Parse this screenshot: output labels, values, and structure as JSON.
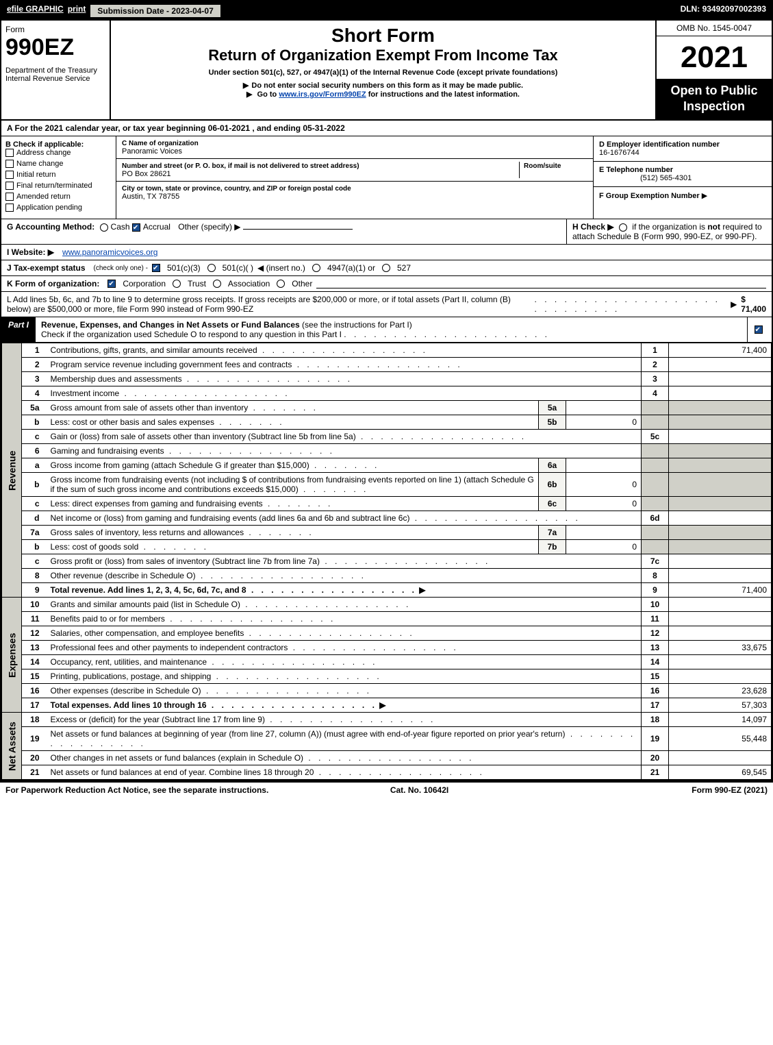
{
  "topbar": {
    "efile": "efile GRAPHIC",
    "print": "print",
    "submission_label": "Submission Date - ",
    "submission_date": "2023-04-07",
    "dln_label": "DLN: ",
    "dln": "93492097002393"
  },
  "header": {
    "form_word": "Form",
    "form_number": "990EZ",
    "dept": "Department of the Treasury",
    "irs": "Internal Revenue Service",
    "short_form": "Short Form",
    "title": "Return of Organization Exempt From Income Tax",
    "subtitle": "Under section 501(c), 527, or 4947(a)(1) of the Internal Revenue Code (except private foundations)",
    "note1": "Do not enter social security numbers on this form as it may be made public.",
    "note2_pre": "Go to ",
    "note2_link": "www.irs.gov/Form990EZ",
    "note2_post": " for instructions and the latest information.",
    "omb": "OMB No. 1545-0047",
    "year": "2021",
    "open": "Open to Public Inspection"
  },
  "sectionA": "A  For the 2021 calendar year, or tax year beginning 06-01-2021 , and ending 05-31-2022",
  "boxB": {
    "label": "B  Check if applicable:",
    "items": [
      "Address change",
      "Name change",
      "Initial return",
      "Final return/terminated",
      "Amended return",
      "Application pending"
    ]
  },
  "boxC": {
    "name_label": "C Name of organization",
    "org_name": "Panoramic Voices",
    "street_label": "Number and street (or P. O. box, if mail is not delivered to street address)",
    "street": "PO Box 28621",
    "room_label": "Room/suite",
    "city_label": "City or town, state or province, country, and ZIP or foreign postal code",
    "city": "Austin, TX  78755"
  },
  "boxD": {
    "label": "D Employer identification number",
    "ein": "16-1676744"
  },
  "boxE": {
    "label": "E Telephone number",
    "phone": "(512) 565-4301"
  },
  "boxF": {
    "label": "F Group Exemption Number",
    "arrow": "▶"
  },
  "rowG": {
    "label": "G Accounting Method:",
    "cash": "Cash",
    "accrual": "Accrual",
    "other": "Other (specify) ▶"
  },
  "rowH": {
    "text1": "H  Check ▶",
    "text2": " if the organization is ",
    "not": "not",
    "text3": " required to attach Schedule B (Form 990, 990-EZ, or 990-PF)."
  },
  "rowI": {
    "label": "I Website: ▶",
    "url": "www.panoramicvoices.org"
  },
  "rowJ": {
    "label": "J Tax-exempt status",
    "hint": " (check only one) - ",
    "opt1": "501(c)(3)",
    "opt2": "501(c)(  )",
    "opt2b": "◀ (insert no.)",
    "opt3": "4947(a)(1) or",
    "opt4": "527"
  },
  "rowK": {
    "label": "K Form of organization:",
    "items": [
      "Corporation",
      "Trust",
      "Association",
      "Other"
    ]
  },
  "rowL": {
    "text": "L Add lines 5b, 6c, and 7b to line 9 to determine gross receipts. If gross receipts are $200,000 or more, or if total assets (Part II, column (B) below) are $500,000 or more, file Form 990 instead of Form 990-EZ",
    "amount": "$ 71,400"
  },
  "partI": {
    "label": "Part I",
    "title": "Revenue, Expenses, and Changes in Net Assets or Fund Balances",
    "title_hint": " (see the instructions for Part I)",
    "check_note": "Check if the organization used Schedule O to respond to any question in this Part I"
  },
  "tabs": {
    "revenue": "Revenue",
    "expenses": "Expenses",
    "netassets": "Net Assets"
  },
  "lines": [
    {
      "n": "1",
      "d": "Contributions, gifts, grants, and similar amounts received",
      "ln": "1",
      "v": "71,400"
    },
    {
      "n": "2",
      "d": "Program service revenue including government fees and contracts",
      "ln": "2",
      "v": ""
    },
    {
      "n": "3",
      "d": "Membership dues and assessments",
      "ln": "3",
      "v": ""
    },
    {
      "n": "4",
      "d": "Investment income",
      "ln": "4",
      "v": ""
    },
    {
      "n": "5a",
      "d": "Gross amount from sale of assets other than inventory",
      "ml": "5a",
      "mv": ""
    },
    {
      "n": "b",
      "d": "Less: cost or other basis and sales expenses",
      "ml": "5b",
      "mv": "0"
    },
    {
      "n": "c",
      "d": "Gain or (loss) from sale of assets other than inventory (Subtract line 5b from line 5a)",
      "ln": "5c",
      "v": ""
    },
    {
      "n": "6",
      "d": "Gaming and fundraising events",
      "ln": "",
      "v": "",
      "grey": true
    },
    {
      "n": "a",
      "d": "Gross income from gaming (attach Schedule G if greater than $15,000)",
      "ml": "6a",
      "mv": ""
    },
    {
      "n": "b",
      "d": "Gross income from fundraising events (not including $                    of contributions from fundraising events reported on line 1) (attach Schedule G if the sum of such gross income and contributions exceeds $15,000)",
      "ml": "6b",
      "mv": "0"
    },
    {
      "n": "c",
      "d": "Less: direct expenses from gaming and fundraising events",
      "ml": "6c",
      "mv": "0"
    },
    {
      "n": "d",
      "d": "Net income or (loss) from gaming and fundraising events (add lines 6a and 6b and subtract line 6c)",
      "ln": "6d",
      "v": ""
    },
    {
      "n": "7a",
      "d": "Gross sales of inventory, less returns and allowances",
      "ml": "7a",
      "mv": ""
    },
    {
      "n": "b",
      "d": "Less: cost of goods sold",
      "ml": "7b",
      "mv": "0"
    },
    {
      "n": "c",
      "d": "Gross profit or (loss) from sales of inventory (Subtract line 7b from line 7a)",
      "ln": "7c",
      "v": ""
    },
    {
      "n": "8",
      "d": "Other revenue (describe in Schedule O)",
      "ln": "8",
      "v": ""
    },
    {
      "n": "9",
      "d": "Total revenue. Add lines 1, 2, 3, 4, 5c, 6d, 7c, and 8",
      "ln": "9",
      "v": "71,400",
      "bold": true,
      "arrow": true
    }
  ],
  "expenses": [
    {
      "n": "10",
      "d": "Grants and similar amounts paid (list in Schedule O)",
      "ln": "10",
      "v": ""
    },
    {
      "n": "11",
      "d": "Benefits paid to or for members",
      "ln": "11",
      "v": ""
    },
    {
      "n": "12",
      "d": "Salaries, other compensation, and employee benefits",
      "ln": "12",
      "v": ""
    },
    {
      "n": "13",
      "d": "Professional fees and other payments to independent contractors",
      "ln": "13",
      "v": "33,675"
    },
    {
      "n": "14",
      "d": "Occupancy, rent, utilities, and maintenance",
      "ln": "14",
      "v": ""
    },
    {
      "n": "15",
      "d": "Printing, publications, postage, and shipping",
      "ln": "15",
      "v": ""
    },
    {
      "n": "16",
      "d": "Other expenses (describe in Schedule O)",
      "ln": "16",
      "v": "23,628"
    },
    {
      "n": "17",
      "d": "Total expenses. Add lines 10 through 16",
      "ln": "17",
      "v": "57,303",
      "bold": true,
      "arrow": true
    }
  ],
  "netassets": [
    {
      "n": "18",
      "d": "Excess or (deficit) for the year (Subtract line 17 from line 9)",
      "ln": "18",
      "v": "14,097"
    },
    {
      "n": "19",
      "d": "Net assets or fund balances at beginning of year (from line 27, column (A)) (must agree with end-of-year figure reported on prior year's return)",
      "ln": "19",
      "v": "55,448"
    },
    {
      "n": "20",
      "d": "Other changes in net assets or fund balances (explain in Schedule O)",
      "ln": "20",
      "v": ""
    },
    {
      "n": "21",
      "d": "Net assets or fund balances at end of year. Combine lines 18 through 20",
      "ln": "21",
      "v": "69,545"
    }
  ],
  "footer": {
    "left": "For Paperwork Reduction Act Notice, see the separate instructions.",
    "cat": "Cat. No. 10642I",
    "right": "Form 990-EZ (2021)"
  },
  "dots": ". . . . . . . . . . . . . . . . . . . . ."
}
